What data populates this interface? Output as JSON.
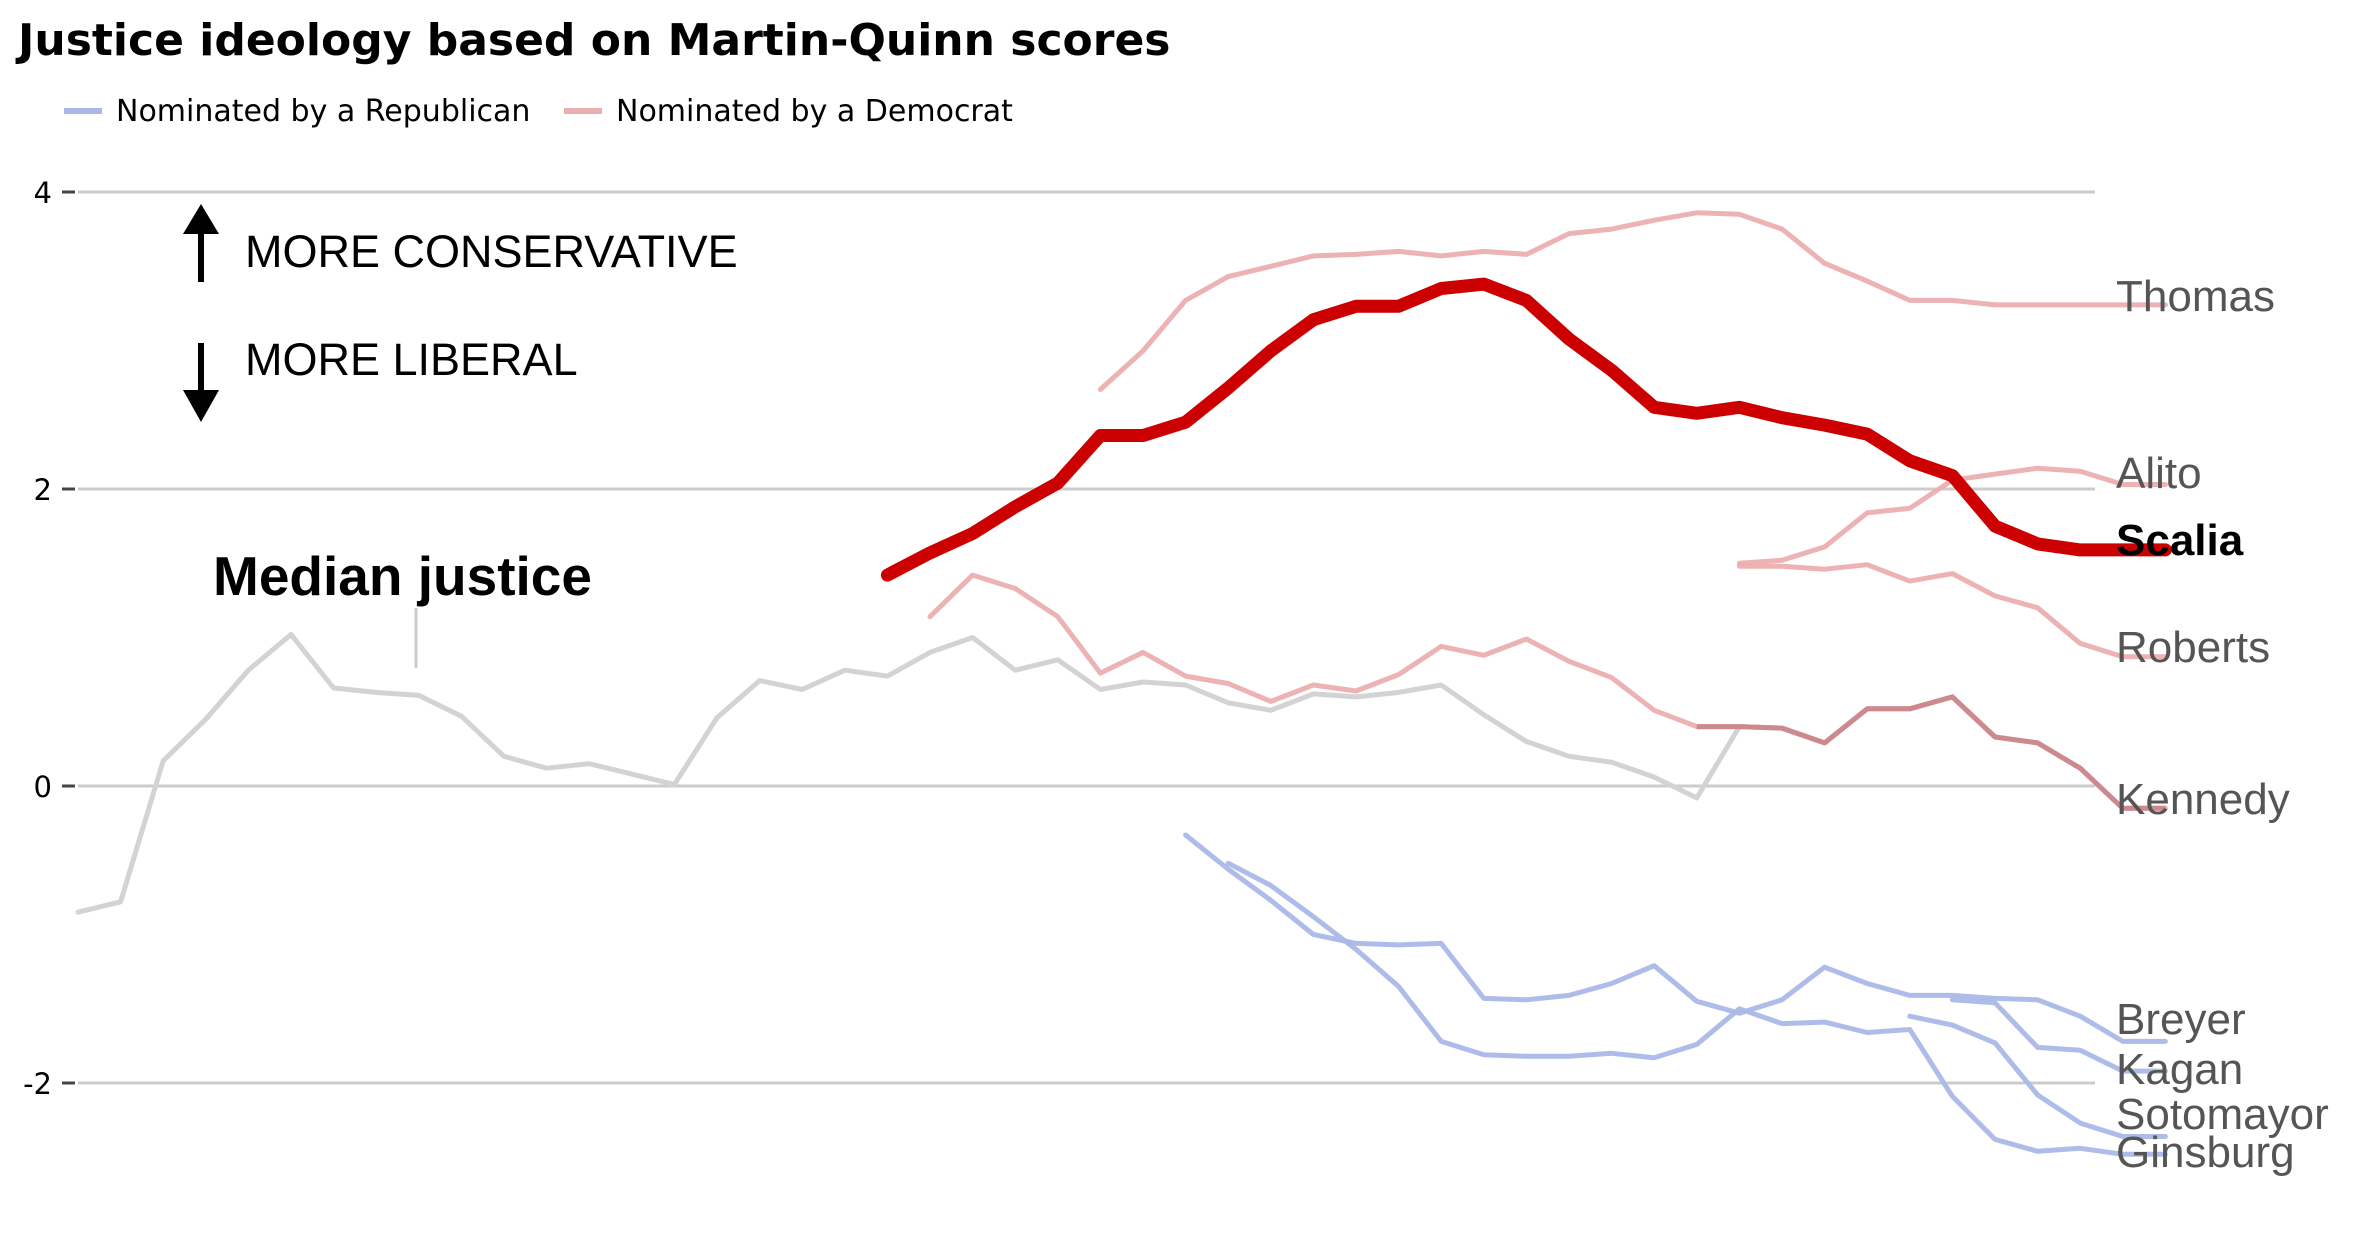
{
  "chart_data": {
    "type": "line",
    "title": "Justice ideology based on Martin-Quinn scores",
    "xlabel": "",
    "ylabel": "",
    "ylim": [
      -2.7,
      4.3
    ],
    "yticks": [
      4,
      2,
      0,
      -2
    ],
    "grid": true,
    "legend": {
      "position": "top-left",
      "items": [
        {
          "label": "Nominated by a Republican",
          "color": "#aab8e8"
        },
        {
          "label": "Nominated by a Democrat",
          "color": "#ebaeb0"
        }
      ]
    },
    "annotations": {
      "conservative": "MORE CONSERVATIVE",
      "liberal": "MORE LIBERAL",
      "median": "Median justice"
    },
    "series": [
      {
        "name": "Median justice",
        "color": "#d3d3d3",
        "width": 5,
        "x": [
          1937,
          1938,
          1939,
          1940,
          1941,
          1942,
          1943,
          1944,
          1945,
          1946,
          1947,
          1948,
          1949,
          1950,
          1951,
          1952,
          1953,
          1954,
          1955,
          1956,
          1957,
          1958,
          1959,
          1960,
          1961,
          1962,
          1963,
          1964,
          1965,
          1966,
          1967,
          1968,
          1969,
          1970,
          1971,
          1972,
          1973,
          1974,
          1975,
          1976,
          1977,
          1978,
          1979,
          1980,
          1981
        ],
        "y": [
          -0.85,
          -0.78,
          0.17,
          0.45,
          0.78,
          1.02,
          0.66,
          0.63,
          0.61,
          0.47,
          0.2,
          0.12,
          0.15,
          0.08,
          0.01,
          0.46,
          0.71,
          0.65,
          0.78,
          0.74,
          0.9,
          1,
          0.78,
          0.85,
          0.65,
          0.7,
          0.68,
          0.56,
          0.51,
          0.62,
          0.6,
          0.63,
          0.68,
          0.48,
          0.3,
          0.2,
          0.16,
          0.06,
          -0.08,
          0.4,
          0.39,
          0.29,
          0.52,
          0.52,
          0.6
        ]
      },
      {
        "name": "Thomas",
        "label": "Thomas",
        "color": "#ebaeb0",
        "width": 5,
        "x": [
          1961,
          1962,
          1963,
          1964,
          1965,
          1966,
          1967,
          1968,
          1969,
          1970,
          1971,
          1972,
          1973,
          1974,
          1975,
          1976,
          1977,
          1978,
          1979,
          1980,
          1981,
          1982,
          1983,
          1984,
          1985,
          1986
        ],
        "y": [
          2.67,
          2.93,
          3.27,
          3.43,
          3.5,
          3.57,
          3.58,
          3.6,
          3.57,
          3.6,
          3.58,
          3.72,
          3.75,
          3.81,
          3.86,
          3.85,
          3.75,
          3.52,
          3.4,
          3.27,
          3.27,
          3.24,
          3.24,
          3.24,
          3.24,
          3.24
        ]
      },
      {
        "name": "Scalia",
        "label": "Scalia",
        "color": "#cc0000",
        "width": 13,
        "bold": true,
        "x": [
          1956,
          1957,
          1958,
          1959,
          1960,
          1961,
          1962,
          1963,
          1964,
          1965,
          1966,
          1967,
          1968,
          1969,
          1970,
          1971,
          1972,
          1973,
          1974,
          1975,
          1976,
          1977,
          1978,
          1979,
          1980,
          1981,
          1982,
          1983,
          1984,
          1985,
          1986
        ],
        "y": [
          1.42,
          1.57,
          1.7,
          1.88,
          2.04,
          2.36,
          2.36,
          2.45,
          2.68,
          2.93,
          3.14,
          3.23,
          3.23,
          3.35,
          3.38,
          3.27,
          3.01,
          2.8,
          2.55,
          2.51,
          2.55,
          2.48,
          2.43,
          2.37,
          2.19,
          2.09,
          1.75,
          1.63,
          1.59,
          1.59,
          1.59
        ]
      },
      {
        "name": "Alito",
        "label": "Alito",
        "color": "#ebaeb0",
        "width": 5,
        "x": [
          1976,
          1977,
          1978,
          1979,
          1980,
          1981,
          1982,
          1983,
          1984,
          1985,
          1986
        ],
        "y": [
          1.5,
          1.52,
          1.61,
          1.84,
          1.87,
          2.06,
          2.1,
          2.14,
          2.12,
          2.03,
          2.03
        ]
      },
      {
        "name": "Roberts",
        "label": "Roberts",
        "color": "#ebaeb0",
        "width": 5,
        "x": [
          1976,
          1977,
          1978,
          1979,
          1980,
          1981,
          1982,
          1983,
          1984,
          1985,
          1986
        ],
        "y": [
          1.48,
          1.48,
          1.46,
          1.49,
          1.38,
          1.43,
          1.28,
          1.2,
          0.96,
          0.87,
          0.87
        ]
      },
      {
        "name": "Kennedy",
        "label": "Kennedy",
        "color": "#ebaeb0",
        "width": 5,
        "x": [
          1957,
          1958,
          1959,
          1960,
          1961,
          1962,
          1963,
          1964,
          1965,
          1966,
          1967,
          1968,
          1969,
          1970,
          1971,
          1972,
          1973,
          1974,
          1975,
          1976,
          1977,
          1978,
          1979,
          1980,
          1981,
          1982,
          1983,
          1984,
          1985,
          1986
        ],
        "y": [
          1.14,
          1.42,
          1.33,
          1.14,
          0.76,
          0.9,
          0.74,
          0.69,
          0.57,
          0.68,
          0.64,
          0.75,
          0.94,
          0.88,
          0.99,
          0.84,
          0.73,
          0.51,
          0.4,
          0.4,
          0.39,
          0.29,
          0.52,
          0.52,
          0.6,
          0.33,
          0.29,
          0.12,
          -0.15,
          -0.15
        ]
      },
      {
        "name": "Breyer",
        "label": "Breyer",
        "color": "#aab8e8",
        "width": 5,
        "x": [
          1963,
          1964,
          1965,
          1966,
          1967,
          1968,
          1969,
          1970,
          1971,
          1972,
          1973,
          1974,
          1975,
          1976,
          1977,
          1978,
          1979,
          1980,
          1981,
          1982,
          1983,
          1984,
          1985,
          1986
        ],
        "y": [
          -0.33,
          -0.56,
          -0.77,
          -1,
          -1.06,
          -1.07,
          -1.06,
          -1.43,
          -1.44,
          -1.41,
          -1.33,
          -1.21,
          -1.45,
          -1.53,
          -1.44,
          -1.22,
          -1.33,
          -1.41,
          -1.41,
          -1.43,
          -1.44,
          -1.55,
          -1.72,
          -1.72
        ]
      },
      {
        "name": "Kagan",
        "label": "Kagan",
        "color": "#aab8e8",
        "width": 5,
        "x": [
          1981,
          1982,
          1983,
          1984,
          1985,
          1986
        ],
        "y": [
          -1.44,
          -1.46,
          -1.76,
          -1.78,
          -1.92,
          -1.92
        ]
      },
      {
        "name": "Sotomayor",
        "label": "Sotomayor",
        "color": "#aab8e8",
        "width": 5,
        "x": [
          1980,
          1981,
          1982,
          1983,
          1984,
          1985,
          1986
        ],
        "y": [
          -1.55,
          -1.61,
          -1.73,
          -2.08,
          -2.27,
          -2.36,
          -2.36
        ]
      },
      {
        "name": "Ginsburg",
        "label": "Ginsburg",
        "color": "#aab8e8",
        "width": 5,
        "x": [
          1964,
          1965,
          1966,
          1967,
          1968,
          1969,
          1970,
          1971,
          1972,
          1973,
          1974,
          1975,
          1976,
          1977,
          1978,
          1979,
          1980,
          1981,
          1982,
          1983,
          1984,
          1985,
          1986
        ],
        "y": [
          -0.52,
          -0.67,
          -0.88,
          -1.1,
          -1.35,
          -1.72,
          -1.81,
          -1.82,
          -1.82,
          -1.8,
          -1.83,
          -1.74,
          -1.5,
          -1.6,
          -1.59,
          -1.66,
          -1.64,
          -2.09,
          -2.38,
          -2.46,
          -2.44,
          -2.48,
          -2.48
        ]
      }
    ]
  }
}
